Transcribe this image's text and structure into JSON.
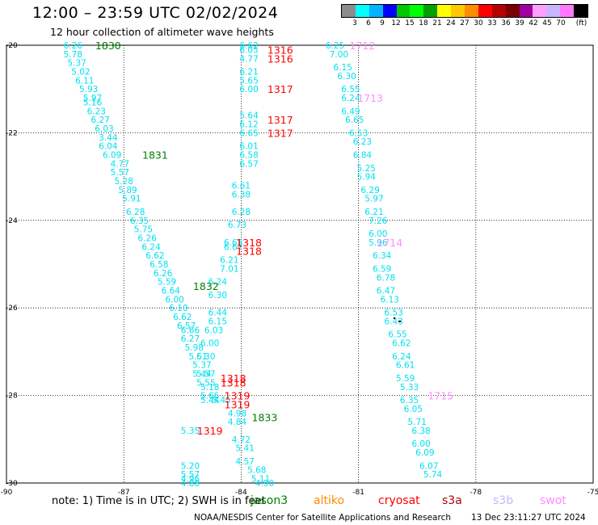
{
  "title": "12:00 – 23:59 UTC 02/02/2024",
  "subtitle": "12 hour collection of altimeter wave heights",
  "legend": {
    "unit": "(ft)",
    "colors": [
      "#8c8c8c",
      "#00ffff",
      "#00b4ff",
      "#0000ff",
      "#00c800",
      "#00ff00",
      "#00a000",
      "#ffff00",
      "#ffc800",
      "#ff8c00",
      "#ff0000",
      "#b40000",
      "#780000",
      "#a000a0",
      "#ffa0ff",
      "#c8b4ff",
      "#ff78ff",
      "#000000"
    ],
    "labels": [
      "3",
      "6",
      "9",
      "12",
      "15",
      "18",
      "21",
      "24",
      "27",
      "30",
      "33",
      "36",
      "39",
      "42",
      "45",
      "70"
    ]
  },
  "note": "note:  1) Time is in UTC;  2) SWH is in feet",
  "satellites": [
    {
      "name": "jason3",
      "color": "#008000"
    },
    {
      "name": "altiko",
      "color": "#ff8c00"
    },
    {
      "name": "cryosat",
      "color": "#ff0000"
    },
    {
      "name": "s3a",
      "color": "#b40000"
    },
    {
      "name": "s3b",
      "color": "#c8b4ff"
    },
    {
      "name": "swot",
      "color": "#ff8cff"
    }
  ],
  "credit": "NOAA/NESDIS Center for Satellite Applications and Research",
  "stamp": "13 Dec 23:11:27 UTC 2024",
  "chart_data": {
    "type": "scatter",
    "xlim": [
      -90,
      -75
    ],
    "ylim": [
      -30,
      -20
    ],
    "xticks": [
      -90,
      -87,
      -84,
      -81,
      -78,
      -75
    ],
    "yticks": [
      -20,
      -22,
      -24,
      -26,
      -28,
      -30
    ],
    "grid": true,
    "color_scale": "wave height (ft)",
    "tracks": [
      {
        "name": "track-1",
        "color": "#00e0f0",
        "points": [
          [
            -88.3,
            -20.0,
            "6.26"
          ],
          [
            -88.3,
            -20.2,
            "5.78"
          ],
          [
            -88.2,
            -20.4,
            "5.37"
          ],
          [
            -88.1,
            -20.6,
            "5.02"
          ],
          [
            -88.0,
            -20.8,
            "6.11"
          ],
          [
            -87.9,
            -21.0,
            "5.93"
          ],
          [
            -87.8,
            -21.2,
            "5.97"
          ],
          [
            -87.8,
            -21.3,
            "5.16"
          ],
          [
            -87.7,
            -21.5,
            "6.23"
          ],
          [
            -87.6,
            -21.7,
            "6.27"
          ],
          [
            -87.5,
            -21.9,
            "6.03"
          ],
          [
            -87.4,
            -22.1,
            "3.44"
          ],
          [
            -87.4,
            -22.3,
            "6.04"
          ],
          [
            -87.3,
            -22.5,
            "6.09"
          ],
          [
            -87.1,
            -22.7,
            "4.77"
          ],
          [
            -87.1,
            -22.9,
            "5.57"
          ],
          [
            -87.0,
            -23.1,
            "5.28"
          ],
          [
            -86.9,
            -23.3,
            "5.89"
          ],
          [
            -86.8,
            -23.5,
            "5.91"
          ],
          [
            -86.7,
            -23.8,
            "6.28"
          ],
          [
            -86.6,
            -24.0,
            "6.35"
          ],
          [
            -86.5,
            -24.2,
            "5.75"
          ],
          [
            -86.4,
            -24.4,
            "6.26"
          ],
          [
            -86.3,
            -24.6,
            "6.24"
          ],
          [
            -86.2,
            -24.8,
            "6.62"
          ],
          [
            -86.1,
            -25.0,
            "6.58"
          ],
          [
            -86.0,
            -25.2,
            "6.26"
          ],
          [
            -85.9,
            -25.4,
            "5.59"
          ],
          [
            -85.8,
            -25.6,
            "6.64"
          ],
          [
            -85.7,
            -25.8,
            "6.00"
          ],
          [
            -85.6,
            -26.0,
            "6.10"
          ],
          [
            -85.5,
            -26.2,
            "6.62"
          ],
          [
            -85.4,
            -26.4,
            "6.57"
          ],
          [
            -85.3,
            -26.5,
            "6.66"
          ],
          [
            -85.3,
            -26.7,
            "6.27"
          ],
          [
            -85.2,
            -26.9,
            "5.98"
          ],
          [
            -85.1,
            -27.1,
            "5.51"
          ],
          [
            -85.0,
            -27.3,
            "5.37"
          ],
          [
            -85.0,
            -27.5,
            "5.44"
          ],
          [
            -84.9,
            -27.7,
            "5.55"
          ],
          [
            -84.8,
            -28.0,
            "5.66"
          ],
          [
            -84.8,
            -28.1,
            "5.44"
          ]
        ]
      },
      {
        "name": "track-2",
        "color": "#00e0f0",
        "points": [
          [
            -83.8,
            -20.0,
            "6.62"
          ],
          [
            -83.8,
            -20.1,
            "6.05"
          ],
          [
            -83.8,
            -20.3,
            "4.77"
          ],
          [
            -83.8,
            -20.6,
            "6.21"
          ],
          [
            -83.8,
            -20.8,
            "5.65"
          ],
          [
            -83.8,
            -21.0,
            "6.00"
          ],
          [
            -83.8,
            -21.6,
            "5.64"
          ],
          [
            -83.8,
            -21.8,
            "6.12"
          ],
          [
            -83.8,
            -22.0,
            "6.65"
          ],
          [
            -83.8,
            -22.3,
            "6.01"
          ],
          [
            -83.8,
            -22.5,
            "6.58"
          ],
          [
            -83.8,
            -22.7,
            "6.57"
          ],
          [
            -84.0,
            -23.2,
            "6.61"
          ],
          [
            -84.0,
            -23.4,
            "6.38"
          ],
          [
            -84.0,
            -23.8,
            "6.28"
          ],
          [
            -84.1,
            -24.1,
            "6.73"
          ],
          [
            -84.2,
            -24.5,
            "6.68"
          ],
          [
            -84.2,
            -24.6,
            "6.67"
          ],
          [
            -84.3,
            -24.9,
            "6.21"
          ],
          [
            -84.3,
            -25.1,
            "7.01"
          ],
          [
            -84.6,
            -25.4,
            "6.24"
          ],
          [
            -84.6,
            -25.7,
            "6.30"
          ],
          [
            -84.6,
            -26.1,
            "6.44"
          ],
          [
            -84.6,
            -26.3,
            "6.15"
          ],
          [
            -84.7,
            -26.5,
            "6.03"
          ],
          [
            -84.8,
            -26.8,
            "6.00"
          ],
          [
            -84.9,
            -27.1,
            "6.30"
          ],
          [
            -84.9,
            -27.5,
            "5.57"
          ],
          [
            -84.8,
            -27.8,
            "5.18"
          ],
          [
            -84.5,
            -28.1,
            "5.45"
          ],
          [
            -84.1,
            -28.4,
            "4.98"
          ],
          [
            -84.1,
            -28.6,
            "4.84"
          ],
          [
            -85.3,
            -28.8,
            "5.35"
          ],
          [
            -84.0,
            -29.0,
            "4.72"
          ],
          [
            -83.9,
            -29.2,
            "5.41"
          ],
          [
            -83.9,
            -29.5,
            "4.57"
          ],
          [
            -83.6,
            -29.7,
            "5.68"
          ],
          [
            -83.5,
            -29.9,
            "5.11"
          ],
          [
            -83.4,
            -30.0,
            "4.90"
          ]
        ]
      },
      {
        "name": "track-3",
        "color": "#00e0f0",
        "points": [
          [
            -85.3,
            -29.6,
            "5.20"
          ],
          [
            -85.3,
            -29.8,
            "5.57"
          ],
          [
            -85.3,
            -29.9,
            "4.96"
          ],
          [
            -85.3,
            -30.0,
            "4.88"
          ]
        ]
      },
      {
        "name": "track-4",
        "color": "#00e0f0",
        "points": [
          [
            -81.6,
            -20.0,
            "6.25"
          ],
          [
            -81.5,
            -20.2,
            "7.00"
          ],
          [
            -81.4,
            -20.5,
            "6.15"
          ],
          [
            -81.3,
            -20.7,
            "6.30"
          ],
          [
            -81.2,
            -21.0,
            "6.55"
          ],
          [
            -81.2,
            -21.2,
            "6.24"
          ],
          [
            -81.2,
            -21.5,
            "6.49"
          ],
          [
            -81.1,
            -21.7,
            "6.65"
          ],
          [
            -81.0,
            -22.0,
            "6.53"
          ],
          [
            -80.9,
            -22.2,
            "6.23"
          ],
          [
            -80.9,
            -22.5,
            "6.84"
          ],
          [
            -80.8,
            -22.8,
            "5.25"
          ],
          [
            -80.8,
            -23.0,
            "5.94"
          ],
          [
            -80.7,
            -23.3,
            "6.29"
          ],
          [
            -80.6,
            -23.5,
            "5.97"
          ],
          [
            -80.6,
            -23.8,
            "6.21"
          ],
          [
            -80.5,
            -24.0,
            "7.26"
          ],
          [
            -80.5,
            -24.3,
            "6.00"
          ],
          [
            -80.5,
            -24.5,
            "5.96"
          ],
          [
            -80.4,
            -24.8,
            "6.34"
          ],
          [
            -80.4,
            -25.1,
            "6.59"
          ],
          [
            -80.3,
            -25.3,
            "6.78"
          ],
          [
            -80.3,
            -25.6,
            "6.47"
          ],
          [
            -80.2,
            -25.8,
            "6.13"
          ],
          [
            -80.1,
            -26.1,
            "6.53"
          ],
          [
            -80.1,
            -26.3,
            "6.43"
          ],
          [
            -80.0,
            -26.6,
            "6.55"
          ],
          [
            -79.9,
            -26.8,
            "6.62"
          ],
          [
            -79.9,
            -27.1,
            "6.24"
          ],
          [
            -79.8,
            -27.3,
            "6.61"
          ],
          [
            -79.8,
            -27.6,
            "5.59"
          ],
          [
            -79.7,
            -27.8,
            "5.33"
          ],
          [
            -79.7,
            -28.1,
            "6.35"
          ],
          [
            -79.6,
            -28.3,
            "6.05"
          ],
          [
            -79.5,
            -28.6,
            "5.71"
          ],
          [
            -79.4,
            -28.8,
            "6.38"
          ],
          [
            -79.4,
            -29.1,
            "6.00"
          ],
          [
            -79.3,
            -29.3,
            "6.09"
          ],
          [
            -79.2,
            -29.6,
            "6.07"
          ],
          [
            -79.1,
            -29.8,
            "5.74"
          ]
        ]
      }
    ],
    "time_labels": [
      {
        "x": -87.4,
        "y": -20.0,
        "text": "1830",
        "color": "#008000"
      },
      {
        "x": -86.2,
        "y": -22.5,
        "text": "1831",
        "color": "#008000"
      },
      {
        "x": -84.9,
        "y": -25.5,
        "text": "1832",
        "color": "#008000"
      },
      {
        "x": -83.4,
        "y": -28.5,
        "text": "1833",
        "color": "#008000"
      },
      {
        "x": -83.0,
        "y": -20.1,
        "text": "1316",
        "color": "#ff0000"
      },
      {
        "x": -83.0,
        "y": -20.3,
        "text": "1316",
        "color": "#ff0000"
      },
      {
        "x": -83.0,
        "y": -21.0,
        "text": "1317",
        "color": "#ff0000"
      },
      {
        "x": -83.0,
        "y": -21.7,
        "text": "1317",
        "color": "#ff0000"
      },
      {
        "x": -83.0,
        "y": -22.0,
        "text": "1317",
        "color": "#ff0000"
      },
      {
        "x": -83.8,
        "y": -24.5,
        "text": "1318",
        "color": "#ff0000"
      },
      {
        "x": -83.8,
        "y": -24.7,
        "text": "1318",
        "color": "#ff0000"
      },
      {
        "x": -84.2,
        "y": -27.6,
        "text": "1318",
        "color": "#ff0000"
      },
      {
        "x": -84.2,
        "y": -27.7,
        "text": "1318",
        "color": "#ff0000"
      },
      {
        "x": -84.1,
        "y": -28.0,
        "text": "1319",
        "color": "#ff0000"
      },
      {
        "x": -84.1,
        "y": -28.2,
        "text": "1319",
        "color": "#ff0000"
      },
      {
        "x": -84.8,
        "y": -28.8,
        "text": "1319",
        "color": "#ff0000"
      },
      {
        "x": -80.9,
        "y": -20.0,
        "text": "1712",
        "color": "#ff8cff"
      },
      {
        "x": -80.7,
        "y": -21.2,
        "text": "1713",
        "color": "#ff8cff"
      },
      {
        "x": -80.2,
        "y": -24.5,
        "text": "1714",
        "color": "#ff8cff"
      },
      {
        "x": -78.9,
        "y": -28.0,
        "text": "1715",
        "color": "#ff8cff"
      }
    ]
  }
}
